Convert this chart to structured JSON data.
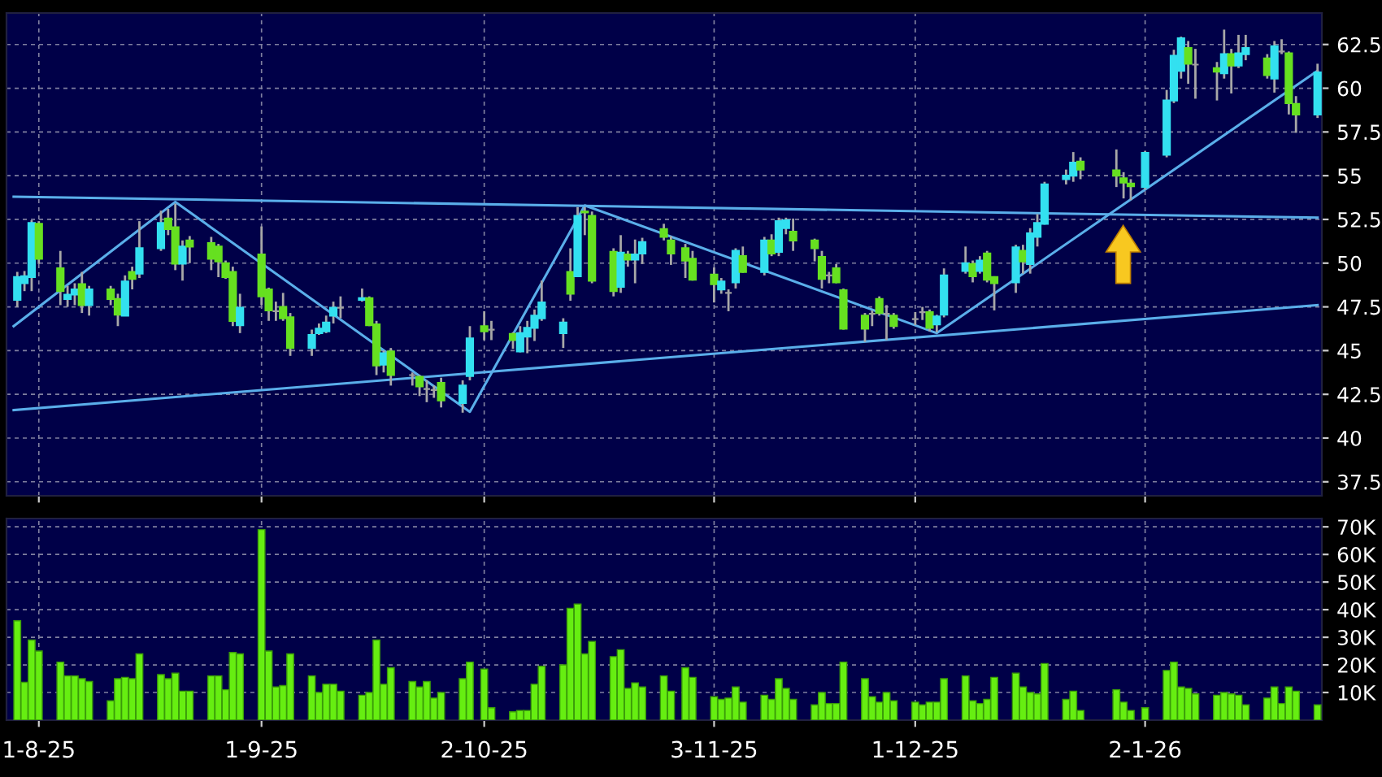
{
  "chart_data": [
    {
      "type": "candlestick",
      "x": [
        "2025-07-29",
        "2025-07-30",
        "2025-07-31",
        "2025-08-01",
        "2025-08-04",
        "2025-08-05",
        "2025-08-06",
        "2025-08-07",
        "2025-08-08",
        "2025-08-11",
        "2025-08-12",
        "2025-08-13",
        "2025-08-14",
        "2025-08-15",
        "2025-08-18",
        "2025-08-19",
        "2025-08-20",
        "2025-08-21",
        "2025-08-22",
        "2025-08-25",
        "2025-08-26",
        "2025-08-27",
        "2025-08-28",
        "2025-08-29",
        "2025-09-01",
        "2025-09-02",
        "2025-09-03",
        "2025-09-04",
        "2025-09-05",
        "2025-09-08",
        "2025-09-09",
        "2025-09-10",
        "2025-09-11",
        "2025-09-12",
        "2025-09-15",
        "2025-09-16",
        "2025-09-17",
        "2025-09-18",
        "2025-09-19",
        "2025-09-22",
        "2025-09-23",
        "2025-09-24",
        "2025-09-25",
        "2025-09-26",
        "2025-09-29",
        "2025-09-30",
        "2025-10-02",
        "2025-10-03",
        "2025-10-06",
        "2025-10-07",
        "2025-10-08",
        "2025-10-09",
        "2025-10-10",
        "2025-10-13",
        "2025-10-14",
        "2025-10-15",
        "2025-10-16",
        "2025-10-17",
        "2025-10-20",
        "2025-10-21",
        "2025-10-22",
        "2025-10-23",
        "2025-10-24",
        "2025-10-27",
        "2025-10-28",
        "2025-10-30",
        "2025-10-31",
        "2025-11-03",
        "2025-11-04",
        "2025-11-05",
        "2025-11-06",
        "2025-11-07",
        "2025-11-10",
        "2025-11-11",
        "2025-11-12",
        "2025-11-13",
        "2025-11-14",
        "2025-11-17",
        "2025-11-18",
        "2025-11-19",
        "2025-11-20",
        "2025-11-21",
        "2025-11-24",
        "2025-11-25",
        "2025-11-26",
        "2025-11-27",
        "2025-11-28",
        "2025-12-01",
        "2025-12-02",
        "2025-12-03",
        "2025-12-04",
        "2025-12-05",
        "2025-12-08",
        "2025-12-09",
        "2025-12-10",
        "2025-12-11",
        "2025-12-12",
        "2025-12-15",
        "2025-12-16",
        "2025-12-17",
        "2025-12-18",
        "2025-12-19",
        "2025-12-22",
        "2025-12-23",
        "2025-12-24",
        "2025-12-29",
        "2025-12-30",
        "2025-12-31",
        "2026-01-02",
        "2026-01-05",
        "2026-01-06",
        "2026-01-07",
        "2026-01-08",
        "2026-01-09",
        "2026-01-12",
        "2026-01-13",
        "2026-01-14",
        "2026-01-15",
        "2026-01-16",
        "2026-01-19",
        "2026-01-20",
        "2026-01-21",
        "2026-01-22",
        "2026-01-23",
        "2026-01-26"
      ],
      "ohlc": [
        [
          47.9,
          49.5,
          47.5,
          49.2
        ],
        [
          48.85,
          49.55,
          48.4,
          49.25
        ],
        [
          49.2,
          52.45,
          48.4,
          52.3
        ],
        [
          52.25,
          52.4,
          49.95,
          50.25
        ],
        [
          49.7,
          50.7,
          47.6,
          48.4
        ],
        [
          47.95,
          48.7,
          47.5,
          48.2
        ],
        [
          48.2,
          48.85,
          47.6,
          48.5
        ],
        [
          48.8,
          49.5,
          47.15,
          47.6
        ],
        [
          47.6,
          48.7,
          47.0,
          48.5
        ],
        [
          48.5,
          48.7,
          47.6,
          47.95
        ],
        [
          47.95,
          48.25,
          46.4,
          47.05
        ],
        [
          47.0,
          49.3,
          47.0,
          48.95
        ],
        [
          49.5,
          49.8,
          48.5,
          49.1
        ],
        [
          49.4,
          52.4,
          49.15,
          50.85
        ],
        [
          50.85,
          53.0,
          50.7,
          52.3
        ],
        [
          52.55,
          53.1,
          51.6,
          51.95
        ],
        [
          52.05,
          53.4,
          49.6,
          49.97
        ],
        [
          49.97,
          51.3,
          49.0,
          50.95
        ],
        [
          51.3,
          51.55,
          50.0,
          50.95
        ],
        [
          51.15,
          51.5,
          49.6,
          50.25
        ],
        [
          50.95,
          51.1,
          49.2,
          50.1
        ],
        [
          50.0,
          50.15,
          49.1,
          49.2
        ],
        [
          49.5,
          49.8,
          46.4,
          46.7
        ],
        [
          46.45,
          48.25,
          46.0,
          47.45
        ],
        [
          50.5,
          52.1,
          47.6,
          48.1
        ],
        [
          48.5,
          48.6,
          46.7,
          47.3
        ],
        [
          47.25,
          47.8,
          46.7,
          47.25
        ],
        [
          47.5,
          48.3,
          46.7,
          46.85
        ],
        [
          46.9,
          47.15,
          44.7,
          45.15
        ],
        [
          45.15,
          46.2,
          44.7,
          45.9
        ],
        [
          46.0,
          46.55,
          45.9,
          46.25
        ],
        [
          46.1,
          47.0,
          46.0,
          46.6
        ],
        [
          47.0,
          47.8,
          46.55,
          47.45
        ],
        [
          47.45,
          48.1,
          46.85,
          47.45
        ],
        [
          47.9,
          48.55,
          47.8,
          48.0
        ],
        [
          48.0,
          48.1,
          46.4,
          46.45
        ],
        [
          46.5,
          46.7,
          43.6,
          44.15
        ],
        [
          44.2,
          45.0,
          43.75,
          44.85
        ],
        [
          44.95,
          45.15,
          43.0,
          43.6
        ],
        [
          43.6,
          43.75,
          43.0,
          43.6
        ],
        [
          43.5,
          43.6,
          42.4,
          42.95
        ],
        [
          42.8,
          43.3,
          42.05,
          42.8
        ],
        [
          42.75,
          43.0,
          42.3,
          42.75
        ],
        [
          43.15,
          43.45,
          41.75,
          42.15
        ],
        [
          42.0,
          43.3,
          41.45,
          43.0
        ],
        [
          43.55,
          46.4,
          43.3,
          45.7
        ],
        [
          46.4,
          47.25,
          45.6,
          46.1
        ],
        [
          46.2,
          46.7,
          45.6,
          46.2
        ],
        [
          45.95,
          46.05,
          45.1,
          45.6
        ],
        [
          44.95,
          46.4,
          44.9,
          46.0
        ],
        [
          45.8,
          46.7,
          44.85,
          46.3
        ],
        [
          46.3,
          47.35,
          45.55,
          47.0
        ],
        [
          46.85,
          49.0,
          46.7,
          47.75
        ],
        [
          46.0,
          46.85,
          45.15,
          46.6
        ],
        [
          49.5,
          50.85,
          47.85,
          48.25
        ],
        [
          49.25,
          53.2,
          49.2,
          52.7
        ],
        [
          52.95,
          53.2,
          51.6,
          52.9
        ],
        [
          52.7,
          52.95,
          48.85,
          49.0
        ],
        [
          50.65,
          50.85,
          48.1,
          48.4
        ],
        [
          48.65,
          51.6,
          48.3,
          50.6
        ],
        [
          50.5,
          50.7,
          49.8,
          50.2
        ],
        [
          50.2,
          51.35,
          48.85,
          50.5
        ],
        [
          50.55,
          51.45,
          49.95,
          51.2
        ],
        [
          51.95,
          52.25,
          51.3,
          51.5
        ],
        [
          51.3,
          51.55,
          49.9,
          50.55
        ],
        [
          50.85,
          51.1,
          49.15,
          50.15
        ],
        [
          50.25,
          50.7,
          49.0,
          49.05
        ],
        [
          49.35,
          49.75,
          47.75,
          48.8
        ],
        [
          48.5,
          49.15,
          48.25,
          48.95
        ],
        [
          48.3,
          48.5,
          47.25,
          48.3
        ],
        [
          48.9,
          50.85,
          48.55,
          50.7
        ],
        [
          50.4,
          50.95,
          49.45,
          49.5
        ],
        [
          49.5,
          51.5,
          49.3,
          51.3
        ],
        [
          51.3,
          51.65,
          50.4,
          50.55
        ],
        [
          50.65,
          52.6,
          50.4,
          52.4
        ],
        [
          52.0,
          52.6,
          51.65,
          52.45
        ],
        [
          51.8,
          52.55,
          50.7,
          51.3
        ],
        [
          51.3,
          51.4,
          50.1,
          50.85
        ],
        [
          50.35,
          50.7,
          48.55,
          49.1
        ],
        [
          49.3,
          49.5,
          48.85,
          49.3
        ],
        [
          49.7,
          49.95,
          48.85,
          48.9
        ],
        [
          48.45,
          48.55,
          46.2,
          46.25
        ],
        [
          47.0,
          47.15,
          45.5,
          46.25
        ],
        [
          47.1,
          47.3,
          46.4,
          47.1
        ],
        [
          47.95,
          48.1,
          47.0,
          47.15
        ],
        [
          47.1,
          47.6,
          45.6,
          47.1
        ],
        [
          47.0,
          47.15,
          46.25,
          46.4
        ],
        [
          46.8,
          47.2,
          46.45,
          46.8
        ],
        [
          47.2,
          47.5,
          46.75,
          47.2
        ],
        [
          47.2,
          47.35,
          46.1,
          46.3
        ],
        [
          46.5,
          47.05,
          46.05,
          46.95
        ],
        [
          47.05,
          49.7,
          46.9,
          49.3
        ],
        [
          49.55,
          50.95,
          49.4,
          50.0
        ],
        [
          49.95,
          50.15,
          48.9,
          49.25
        ],
        [
          49.55,
          50.4,
          49.4,
          50.15
        ],
        [
          50.55,
          50.7,
          48.9,
          49.05
        ],
        [
          49.2,
          49.25,
          47.3,
          48.85
        ],
        [
          48.9,
          51.05,
          48.3,
          50.9
        ],
        [
          50.7,
          51.05,
          49.4,
          50.1
        ],
        [
          49.95,
          52.0,
          49.4,
          51.7
        ],
        [
          51.5,
          52.8,
          50.95,
          52.3
        ],
        [
          52.25,
          54.65,
          52.2,
          54.5
        ],
        [
          54.8,
          55.35,
          54.5,
          55.0
        ],
        [
          55.0,
          56.35,
          54.65,
          55.75
        ],
        [
          55.8,
          56.05,
          54.8,
          55.35
        ],
        [
          55.3,
          56.5,
          54.35,
          55.0
        ],
        [
          54.85,
          55.2,
          53.7,
          54.6
        ],
        [
          54.55,
          54.8,
          53.6,
          54.4
        ],
        [
          54.35,
          56.4,
          54.2,
          56.3
        ],
        [
          56.2,
          59.9,
          56.05,
          59.3
        ],
        [
          59.3,
          62.2,
          59.15,
          61.85
        ],
        [
          61.0,
          62.95,
          60.55,
          62.85
        ],
        [
          62.3,
          62.7,
          60.25,
          61.4
        ],
        [
          61.35,
          62.25,
          59.4,
          61.35
        ],
        [
          61.15,
          61.5,
          59.3,
          60.95
        ],
        [
          60.85,
          63.35,
          60.55,
          61.95
        ],
        [
          61.95,
          62.25,
          59.7,
          61.3
        ],
        [
          61.3,
          63.05,
          61.15,
          62.0
        ],
        [
          61.95,
          63.05,
          61.6,
          62.3
        ],
        [
          61.7,
          61.95,
          60.55,
          60.75
        ],
        [
          60.55,
          62.7,
          59.75,
          62.4
        ],
        [
          62.1,
          62.8,
          61.95,
          62.1
        ],
        [
          62.0,
          62.1,
          58.5,
          59.15
        ],
        [
          59.1,
          59.55,
          57.45,
          58.5
        ],
        [
          58.5,
          61.4,
          58.3,
          60.9
        ]
      ],
      "colors": [
        "#33e0f0",
        "#33e0f0",
        "#33e0f0",
        "#66e020",
        "#66e020",
        "#33e0f0",
        "#33e0f0",
        "#66e020",
        "#33e0f0",
        "#66e020",
        "#66e020",
        "#33e0f0",
        "#66e020",
        "#33e0f0",
        "#33e0f0",
        "#66e020",
        "#66e020",
        "#33e0f0",
        "#66e020",
        "#66e020",
        "#66e020",
        "#66e020",
        "#66e020",
        "#33e0f0",
        "#66e020",
        "#66e020",
        "#a0a0a0",
        "#66e020",
        "#66e020",
        "#33e0f0",
        "#33e0f0",
        "#33e0f0",
        "#33e0f0",
        "#a0a0a0",
        "#33e0f0",
        "#66e020",
        "#66e020",
        "#33e0f0",
        "#66e020",
        "#a0a0a0",
        "#66e020",
        "#a0a0a0",
        "#a0a0a0",
        "#66e020",
        "#33e0f0",
        "#33e0f0",
        "#66e020",
        "#a0a0a0",
        "#66e020",
        "#33e0f0",
        "#33e0f0",
        "#33e0f0",
        "#33e0f0",
        "#33e0f0",
        "#66e020",
        "#33e0f0",
        "#66e020",
        "#66e020",
        "#66e020",
        "#33e0f0",
        "#66e020",
        "#33e0f0",
        "#33e0f0",
        "#66e020",
        "#66e020",
        "#66e020",
        "#66e020",
        "#66e020",
        "#33e0f0",
        "#a0a0a0",
        "#33e0f0",
        "#66e020",
        "#33e0f0",
        "#66e020",
        "#33e0f0",
        "#33e0f0",
        "#66e020",
        "#66e020",
        "#66e020",
        "#a0a0a0",
        "#66e020",
        "#66e020",
        "#66e020",
        "#a0a0a0",
        "#66e020",
        "#a0a0a0",
        "#66e020",
        "#a0a0a0",
        "#a0a0a0",
        "#66e020",
        "#33e0f0",
        "#33e0f0",
        "#33e0f0",
        "#66e020",
        "#33e0f0",
        "#66e020",
        "#66e020",
        "#33e0f0",
        "#66e020",
        "#33e0f0",
        "#33e0f0",
        "#33e0f0",
        "#33e0f0",
        "#33e0f0",
        "#66e020",
        "#66e020",
        "#66e020",
        "#66e020",
        "#33e0f0",
        "#33e0f0",
        "#33e0f0",
        "#33e0f0",
        "#66e020",
        "#a0a0a0",
        "#66e020",
        "#33e0f0",
        "#66e020",
        "#33e0f0",
        "#33e0f0",
        "#66e020",
        "#33e0f0",
        "#a0a0a0",
        "#66e020",
        "#66e020",
        "#33e0f0"
      ],
      "series": [
        {
          "type": "line",
          "color": "#5aaeea",
          "x": [
            "2025-07-28T12:00",
            "2026-01-26"
          ],
          "values": [
            53.8,
            52.6
          ]
        },
        {
          "type": "line",
          "color": "#5aaeea",
          "x": [
            "2025-07-28T12:00",
            "2026-01-26"
          ],
          "values": [
            41.6,
            47.6
          ]
        },
        {
          "type": "line",
          "color": "#5aaeea",
          "x": [
            "2025-07-28T12:00",
            "2025-08-20",
            "2025-09-30",
            "2025-10-16",
            "2025-12-04",
            "2026-01-26"
          ],
          "values": [
            46.4,
            53.5,
            41.5,
            53.3,
            46.0,
            61.0
          ]
        }
      ],
      "xlim": [
        "2025-07-27T12:00",
        "2026-01-26T14:24"
      ],
      "xticks": [
        {
          "value": "2025-08-01",
          "label": null
        },
        {
          "value": "2025-09-01",
          "label": null
        },
        {
          "value": "2025-10-02",
          "label": null
        },
        {
          "value": "2025-11-03",
          "label": null
        },
        {
          "value": "2025-12-01",
          "label": null
        },
        {
          "value": "2026-01-02",
          "label": null
        }
      ],
      "ylim": [
        36.7,
        64.3
      ],
      "yticks": [
        37.5,
        40,
        42.5,
        45,
        47.5,
        50,
        52.5,
        55,
        57.5,
        60,
        62.5
      ],
      "tick_labels": "y",
      "grid": true,
      "legend": false
    },
    {
      "type": "bar",
      "x": [
        "2025-07-29",
        "2025-07-30",
        "2025-07-31",
        "2025-08-01",
        "2025-08-04",
        "2025-08-05",
        "2025-08-06",
        "2025-08-07",
        "2025-08-08",
        "2025-08-11",
        "2025-08-12",
        "2025-08-13",
        "2025-08-14",
        "2025-08-15",
        "2025-08-18",
        "2025-08-19",
        "2025-08-20",
        "2025-08-21",
        "2025-08-22",
        "2025-08-25",
        "2025-08-26",
        "2025-08-27",
        "2025-08-28",
        "2025-08-29",
        "2025-09-01",
        "2025-09-02",
        "2025-09-03",
        "2025-09-04",
        "2025-09-05",
        "2025-09-08",
        "2025-09-09",
        "2025-09-10",
        "2025-09-11",
        "2025-09-12",
        "2025-09-15",
        "2025-09-16",
        "2025-09-17",
        "2025-09-18",
        "2025-09-19",
        "2025-09-22",
        "2025-09-23",
        "2025-09-24",
        "2025-09-25",
        "2025-09-26",
        "2025-09-29",
        "2025-09-30",
        "2025-10-02",
        "2025-10-03",
        "2025-10-06",
        "2025-10-07",
        "2025-10-08",
        "2025-10-09",
        "2025-10-10",
        "2025-10-13",
        "2025-10-14",
        "2025-10-15",
        "2025-10-16",
        "2025-10-17",
        "2025-10-20",
        "2025-10-21",
        "2025-10-22",
        "2025-10-23",
        "2025-10-24",
        "2025-10-27",
        "2025-10-28",
        "2025-10-30",
        "2025-10-31",
        "2025-11-03",
        "2025-11-04",
        "2025-11-05",
        "2025-11-06",
        "2025-11-07",
        "2025-11-10",
        "2025-11-11",
        "2025-11-12",
        "2025-11-13",
        "2025-11-14",
        "2025-11-17",
        "2025-11-18",
        "2025-11-19",
        "2025-11-20",
        "2025-11-21",
        "2025-11-24",
        "2025-11-25",
        "2025-11-26",
        "2025-11-27",
        "2025-11-28",
        "2025-12-01",
        "2025-12-02",
        "2025-12-03",
        "2025-12-04",
        "2025-12-05",
        "2025-12-08",
        "2025-12-09",
        "2025-12-10",
        "2025-12-11",
        "2025-12-12",
        "2025-12-15",
        "2025-12-16",
        "2025-12-17",
        "2025-12-18",
        "2025-12-19",
        "2025-12-22",
        "2025-12-23",
        "2025-12-24",
        "2025-12-29",
        "2025-12-30",
        "2025-12-31",
        "2026-01-02",
        "2026-01-05",
        "2026-01-06",
        "2026-01-07",
        "2026-01-08",
        "2026-01-09",
        "2026-01-12",
        "2026-01-13",
        "2026-01-14",
        "2026-01-15",
        "2026-01-16",
        "2026-01-19",
        "2026-01-20",
        "2026-01-21",
        "2026-01-22",
        "2026-01-23",
        "2026-01-26"
      ],
      "color": "#66ee11",
      "values": [
        36000,
        13700,
        29000,
        25000,
        21000,
        16000,
        16000,
        15000,
        14000,
        7000,
        15000,
        15500,
        15000,
        24000,
        16500,
        15000,
        17000,
        10500,
        10500,
        16000,
        16000,
        11000,
        24500,
        24000,
        69000,
        25000,
        12000,
        12500,
        24000,
        16000,
        10000,
        13000,
        13000,
        10500,
        9000,
        10000,
        29000,
        13000,
        19000,
        14000,
        12000,
        14000,
        8000,
        10000,
        15000,
        21000,
        18500,
        4500,
        3000,
        3500,
        3500,
        13000,
        19500,
        20000,
        40500,
        42000,
        24000,
        28500,
        23000,
        25500,
        11500,
        13500,
        12000,
        16000,
        10500,
        19000,
        15500,
        8500,
        7500,
        8000,
        12000,
        6500,
        9000,
        7500,
        15000,
        11500,
        7500,
        5500,
        10000,
        6000,
        6000,
        21000,
        15000,
        8500,
        6500,
        10000,
        7000,
        6500,
        5500,
        6500,
        6500,
        15000,
        16000,
        7000,
        6000,
        7500,
        15500,
        17000,
        12000,
        10000,
        9500,
        20500,
        7500,
        10500,
        3500,
        11000,
        6500,
        3500,
        4500,
        18000,
        21000,
        12000,
        11500,
        9500,
        9000,
        10000,
        9500,
        9000,
        5500,
        8000,
        12000,
        6000,
        12000,
        10500,
        5500
      ],
      "xlim": [
        "2025-07-27T12:00",
        "2026-01-26T14:24"
      ],
      "xticks": [
        {
          "value": "2025-08-01",
          "label": "1-8-25"
        },
        {
          "value": "2025-09-01",
          "label": "1-9-25"
        },
        {
          "value": "2025-10-02",
          "label": "2-10-25"
        },
        {
          "value": "2025-11-03",
          "label": "3-11-25"
        },
        {
          "value": "2025-12-01",
          "label": "1-12-25"
        },
        {
          "value": "2026-01-02",
          "label": "2-1-26"
        }
      ],
      "ylim": [
        0,
        73000
      ],
      "yticks": [
        {
          "value": 10000,
          "label": "10K"
        },
        {
          "value": 20000,
          "label": "20K"
        },
        {
          "value": 30000,
          "label": "30K"
        },
        {
          "value": 40000,
          "label": "40K"
        },
        {
          "value": 50000,
          "label": "50K"
        },
        {
          "value": 60000,
          "label": "60K"
        },
        {
          "value": 70000,
          "label": "70K"
        }
      ],
      "grid": true,
      "legend": false
    }
  ]
}
